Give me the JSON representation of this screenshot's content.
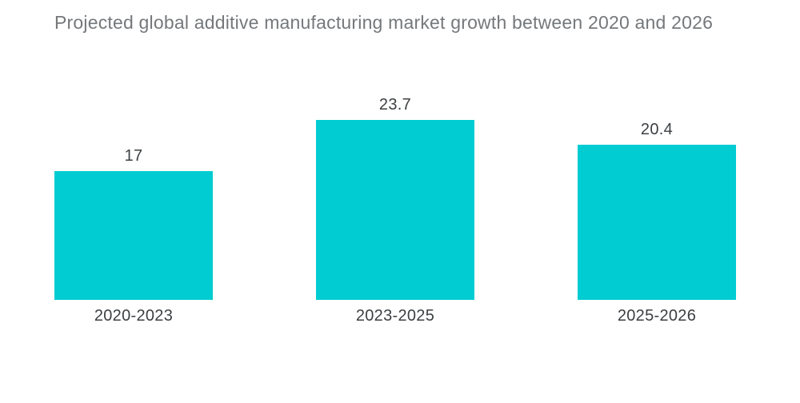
{
  "chart_data": {
    "type": "bar",
    "title": "Projected global additive manufacturing market growth between 2020 and 2026",
    "categories": [
      "2020-2023",
      "2023-2025",
      "2025-2026"
    ],
    "values": [
      17,
      23.7,
      20.4
    ],
    "value_labels": [
      "17",
      "23.7",
      "20.4"
    ],
    "xlabel": "",
    "ylabel": "",
    "ylim": [
      0,
      25
    ],
    "grid": false,
    "legend": false,
    "orientation": "vertical",
    "bar_color": "#00CCD2",
    "value_label_color": "#3C4043",
    "axis_label_color": "#3C4043",
    "title_color": "#75787B",
    "background_color": "#FFFFFF"
  }
}
